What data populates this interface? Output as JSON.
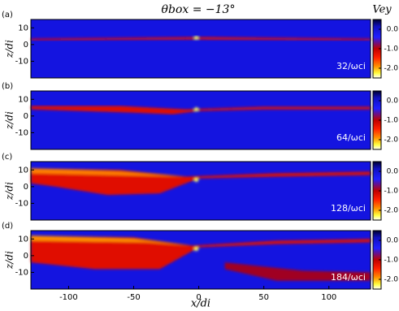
{
  "figure": {
    "title": "θbox = −13°",
    "xlabel": "x/di",
    "colorbar_label": "Vey"
  },
  "chart_data": [
    {
      "type": "heatmap",
      "label": "(a)",
      "annotation": "32/ωci",
      "ylabel": "z/di",
      "xlim": [
        -129,
        132
      ],
      "ylim": [
        -20,
        15
      ],
      "yticks": [
        -10,
        0,
        10
      ],
      "clim": [
        -2.5,
        0.5
      ],
      "cticks": [
        {
          "value": 0,
          "label": "0.0"
        },
        {
          "value": -1,
          "label": "-1.0"
        },
        {
          "value": -2,
          "label": "-2.0"
        }
      ]
    },
    {
      "type": "heatmap",
      "label": "(b)",
      "annotation": "64/ωci",
      "ylabel": "z/di",
      "xlim": [
        -129,
        132
      ],
      "ylim": [
        -20,
        15
      ],
      "yticks": [
        -10,
        0,
        10
      ],
      "clim": [
        -2.5,
        0.5
      ],
      "cticks": [
        {
          "value": 0,
          "label": "0.0"
        },
        {
          "value": -1,
          "label": "-1.0"
        },
        {
          "value": -2,
          "label": "-2.0"
        }
      ]
    },
    {
      "type": "heatmap",
      "label": "(c)",
      "annotation": "128/ωci",
      "ylabel": "z/di",
      "xlim": [
        -129,
        132
      ],
      "ylim": [
        -20,
        15
      ],
      "yticks": [
        -10,
        0,
        10
      ],
      "clim": [
        -2.5,
        0.5
      ],
      "cticks": [
        {
          "value": 0,
          "label": "0.0"
        },
        {
          "value": -1,
          "label": "-1.0"
        },
        {
          "value": -2,
          "label": "-2.0"
        }
      ]
    },
    {
      "type": "heatmap",
      "label": "(d)",
      "annotation": "184/ωci",
      "ylabel": "z/di",
      "xlim": [
        -129,
        132
      ],
      "ylim": [
        -20,
        15
      ],
      "yticks": [
        -10,
        0,
        10
      ],
      "xticks": [
        -100,
        -50,
        0,
        50,
        100
      ],
      "clim": [
        -2.5,
        0.5
      ],
      "cticks": [
        {
          "value": 0,
          "label": "0.0"
        },
        {
          "value": -1,
          "label": "-1.0"
        },
        {
          "value": -2,
          "label": "-2.0"
        }
      ]
    }
  ]
}
